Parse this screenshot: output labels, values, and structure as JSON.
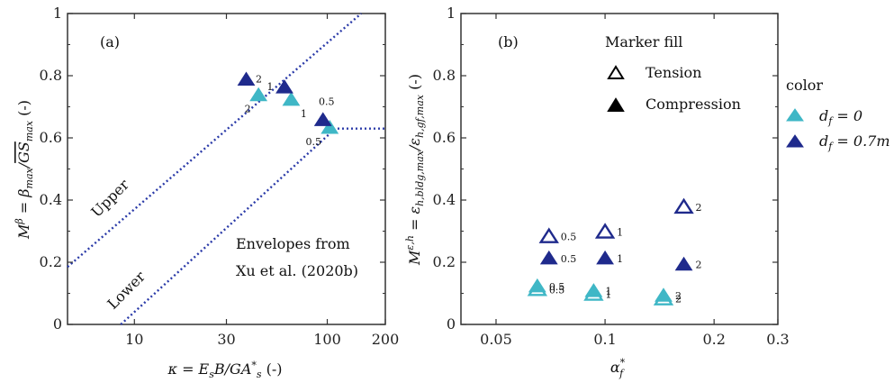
{
  "colors": {
    "cyan": "#3fb7c6",
    "navy": "#1f2a8c",
    "envelope": "#2a3aa8",
    "axis": "#333333"
  },
  "chart_data": [
    {
      "id": "a",
      "type": "scatter",
      "panel_label": "(a)",
      "xlabel": "κ = E_sB/GA_s* (-)",
      "ylabel": "M^β = β_max/GS_max (-)",
      "x_scale": "log",
      "xlim": [
        4.5,
        200
      ],
      "ylim": [
        0,
        1
      ],
      "x_ticks": [
        10,
        30,
        100,
        200
      ],
      "y_ticks": [
        0,
        0.2,
        0.4,
        0.6,
        0.8,
        1
      ],
      "y_tick_labels": [
        "0",
        "0.2",
        "0.4",
        "0.6",
        "0.8",
        "1"
      ],
      "envelopes": [
        {
          "name": "Upper",
          "points": [
            [
              4.5,
              0.185
            ],
            [
              150,
              1.0
            ]
          ]
        },
        {
          "name": "Lower",
          "points": [
            [
              8.5,
              0.0
            ],
            [
              110,
              0.63
            ],
            [
              200,
              0.63
            ]
          ]
        }
      ],
      "envelope_text_1": "Envelopes from",
      "envelope_text_2": "Xu et al. (2020b)",
      "series": [
        {
          "name": "d_f = 0",
          "color": "#3fb7c6",
          "fill": "compression",
          "points": [
            {
              "x": 44,
              "y": 0.74,
              "label": "2"
            },
            {
              "x": 65,
              "y": 0.725,
              "label": "1"
            },
            {
              "x": 103,
              "y": 0.635,
              "label": "0.5"
            }
          ]
        },
        {
          "name": "d_f = 0.7m",
          "color": "#1f2a8c",
          "fill": "compression",
          "points": [
            {
              "x": 38,
              "y": 0.79,
              "label": "2"
            },
            {
              "x": 60,
              "y": 0.765,
              "label": "1"
            },
            {
              "x": 95,
              "y": 0.66,
              "label": "0.5"
            }
          ]
        }
      ]
    },
    {
      "id": "b",
      "type": "scatter",
      "panel_label": "(b)",
      "xlabel": "α_f*",
      "ylabel": "M^{ε,h} = ε_{h,bldg,max}/ε_{h,gf,max} (-)",
      "x_scale": "log",
      "xlim": [
        0.04,
        0.3
      ],
      "ylim": [
        0,
        1
      ],
      "x_ticks": [
        0.05,
        0.1,
        0.2,
        0.3
      ],
      "y_ticks": [
        0,
        0.2,
        0.4,
        0.6,
        0.8,
        1
      ],
      "y_tick_labels": [
        "0",
        "0.2",
        "0.4",
        "0.6",
        "0.8",
        "1"
      ],
      "series": [
        {
          "name": "d_f = 0",
          "color": "#3fb7c6",
          "fill": "tension",
          "points": [
            {
              "x": 0.065,
              "y": 0.115,
              "label": "0.5"
            },
            {
              "x": 0.093,
              "y": 0.1,
              "label": "1"
            },
            {
              "x": 0.145,
              "y": 0.085,
              "label": "2"
            }
          ]
        },
        {
          "name": "d_f = 0",
          "color": "#3fb7c6",
          "fill": "compression",
          "points": [
            {
              "x": 0.065,
              "y": 0.125,
              "label": "0.5"
            },
            {
              "x": 0.093,
              "y": 0.11,
              "label": "1"
            },
            {
              "x": 0.145,
              "y": 0.095,
              "label": "2"
            }
          ]
        },
        {
          "name": "d_f = 0.7m",
          "color": "#1f2a8c",
          "fill": "tension",
          "points": [
            {
              "x": 0.07,
              "y": 0.285,
              "label": "0.5"
            },
            {
              "x": 0.1,
              "y": 0.3,
              "label": "1"
            },
            {
              "x": 0.165,
              "y": 0.38,
              "label": "2"
            }
          ]
        },
        {
          "name": "d_f = 0.7m",
          "color": "#1f2a8c",
          "fill": "compression",
          "points": [
            {
              "x": 0.07,
              "y": 0.215,
              "label": "0.5"
            },
            {
              "x": 0.1,
              "y": 0.215,
              "label": "1"
            },
            {
              "x": 0.165,
              "y": 0.195,
              "label": "2"
            }
          ]
        }
      ],
      "legend_fill": {
        "title": "Marker fill",
        "entries": [
          "Tension",
          "Compression"
        ]
      }
    }
  ],
  "legend_color": {
    "title": "color",
    "entries": [
      {
        "label": "d_f = 0",
        "color": "#3fb7c6"
      },
      {
        "label": "d_f = 0.7m",
        "color": "#1f2a8c"
      }
    ]
  }
}
